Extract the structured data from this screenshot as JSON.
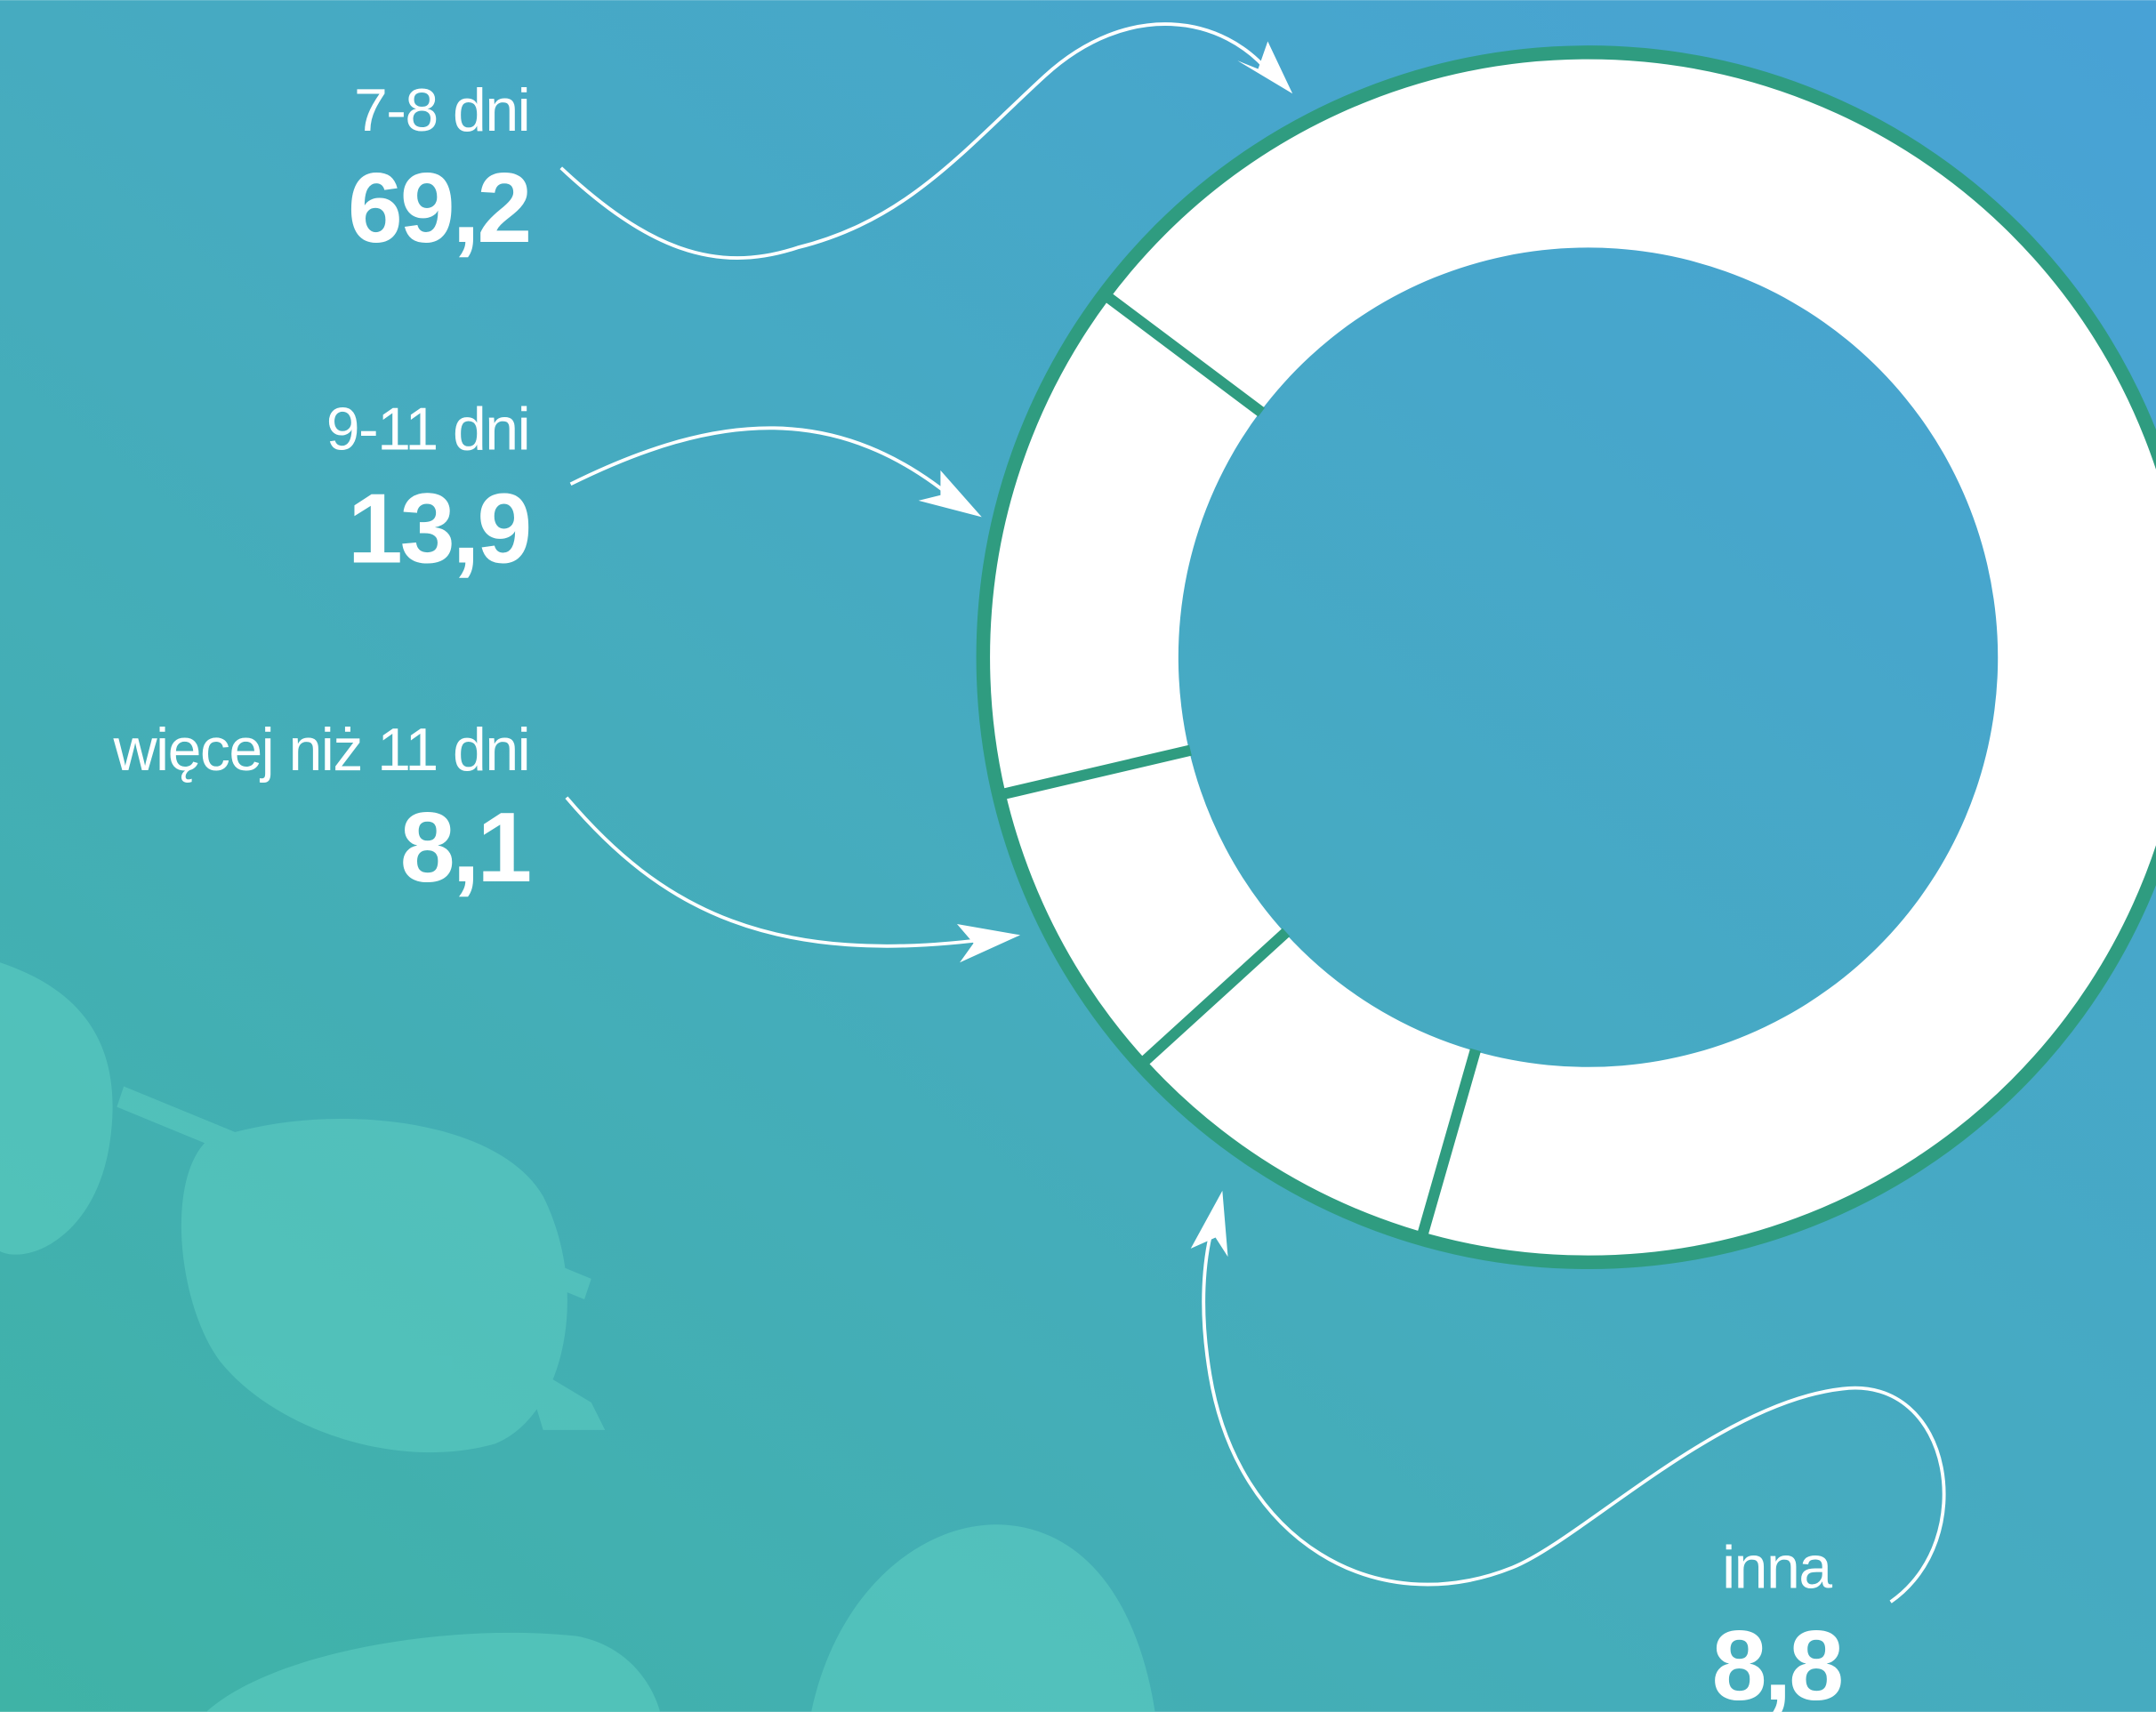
{
  "chart_data": {
    "type": "donut",
    "categories": [
      "7-8 dni",
      "9-11 dni",
      "więcej niż 11 dni",
      "inna"
    ],
    "values": [
      69.2,
      13.9,
      8.1,
      8.8
    ],
    "value_labels": [
      "69,2",
      "13,9",
      "8,1",
      "8,8"
    ],
    "color": "#ffffff"
  }
}
